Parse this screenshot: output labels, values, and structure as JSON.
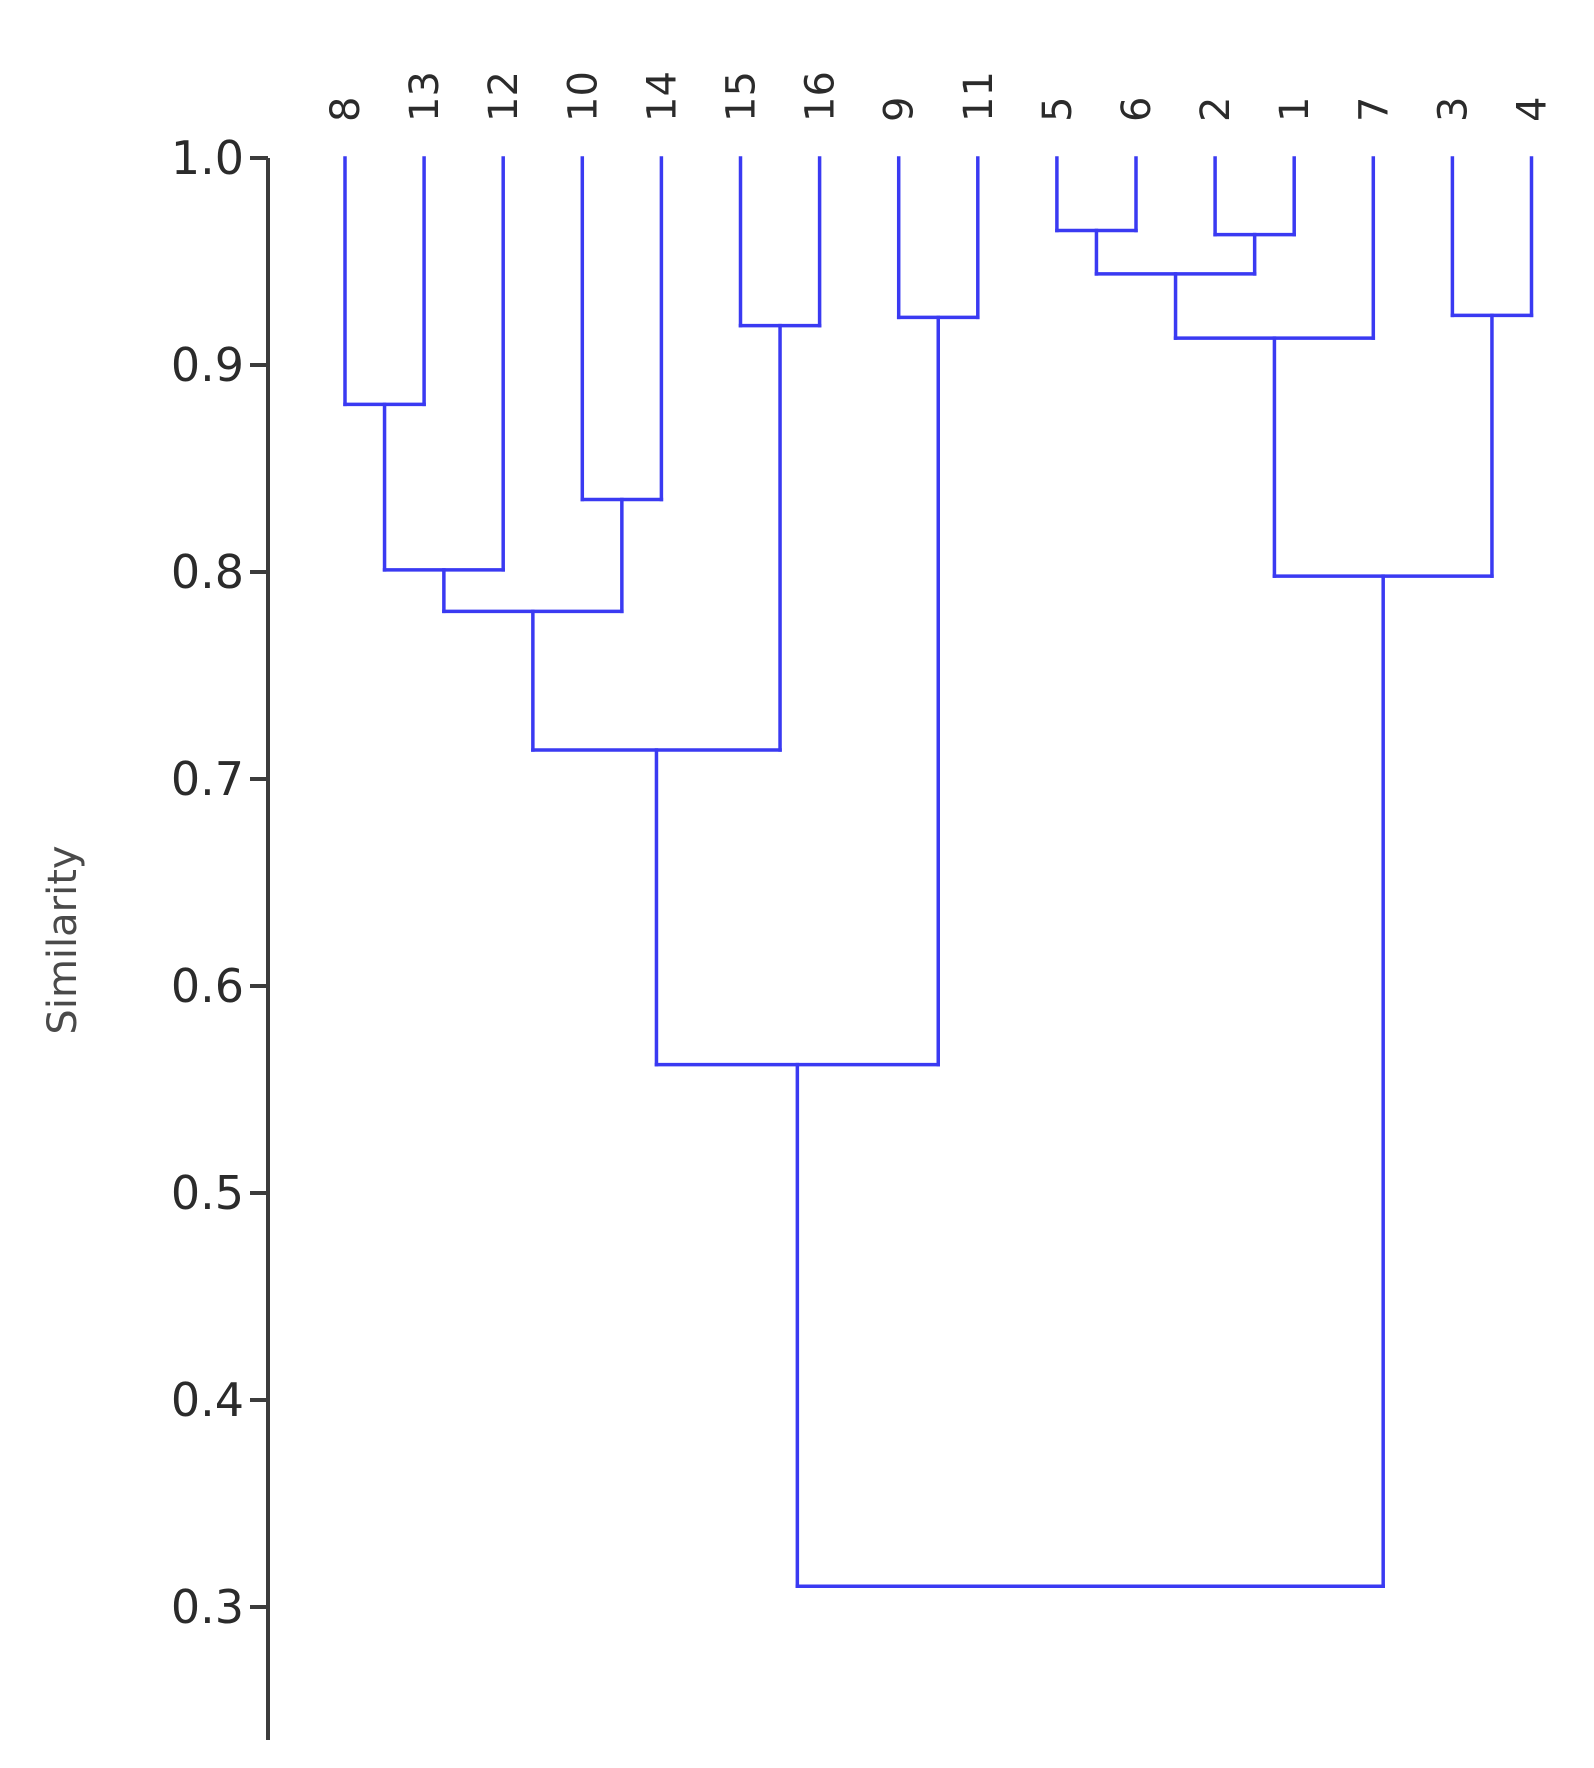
{
  "chart_data": {
    "type": "dendrogram",
    "ylabel": "Similarity",
    "ylim": [
      0.25,
      1.0
    ],
    "yticks": [
      "1.0",
      "0.9",
      "0.8",
      "0.7",
      "0.6",
      "0.5",
      "0.4",
      "0.3"
    ],
    "leaf_order": [
      "8",
      "13",
      "12",
      "10",
      "14",
      "15",
      "16",
      "9",
      "11",
      "5",
      "6",
      "2",
      "1",
      "7",
      "3",
      "4"
    ],
    "line_color": "#3a3af2",
    "axis_color": "#3c3c3c",
    "merges": [
      {
        "id": "c1",
        "children": [
          "8",
          "13"
        ],
        "similarity": 0.881
      },
      {
        "id": "c2",
        "children": [
          "c1",
          "12"
        ],
        "similarity": 0.801
      },
      {
        "id": "c3",
        "children": [
          "10",
          "14"
        ],
        "similarity": 0.835
      },
      {
        "id": "c4",
        "children": [
          "c2",
          "c3"
        ],
        "similarity": 0.781
      },
      {
        "id": "c5",
        "children": [
          "15",
          "16"
        ],
        "similarity": 0.919
      },
      {
        "id": "c6",
        "children": [
          "c4",
          "c5"
        ],
        "similarity": 0.714
      },
      {
        "id": "c7",
        "children": [
          "9",
          "11"
        ],
        "similarity": 0.923
      },
      {
        "id": "c8",
        "children": [
          "c6",
          "c7"
        ],
        "similarity": 0.562
      },
      {
        "id": "c9",
        "children": [
          "5",
          "6"
        ],
        "similarity": 0.965
      },
      {
        "id": "c10",
        "children": [
          "2",
          "1"
        ],
        "similarity": 0.963
      },
      {
        "id": "c11",
        "children": [
          "c9",
          "c10"
        ],
        "similarity": 0.944
      },
      {
        "id": "c12",
        "children": [
          "c11",
          "7"
        ],
        "similarity": 0.913
      },
      {
        "id": "c13",
        "children": [
          "3",
          "4"
        ],
        "similarity": 0.924
      },
      {
        "id": "c14",
        "children": [
          "c12",
          "c13"
        ],
        "similarity": 0.798
      },
      {
        "id": "c15",
        "children": [
          "c8",
          "c14"
        ],
        "similarity": 0.31
      }
    ]
  }
}
